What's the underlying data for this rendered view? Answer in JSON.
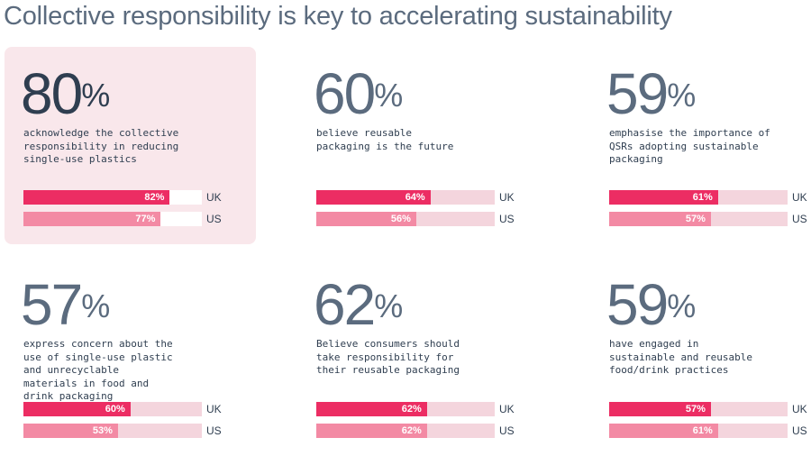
{
  "title": "Collective responsibility is key to accelerating sustainability",
  "colors": {
    "uk": "#ec2d63",
    "us": "#f38aa4",
    "track": "#f4d5dd",
    "highlight_bg": "#f9e7eb"
  },
  "stats": [
    {
      "value": "80",
      "unit": "%",
      "text": "acknowledge the collective responsibility in reducing single-use plastics",
      "uk": 82,
      "us": 77,
      "uk_label": "82%",
      "us_label": "77%",
      "highlighted": true
    },
    {
      "value": "60",
      "unit": "%",
      "text": "believe reusable packaging is the future",
      "uk": 64,
      "us": 56,
      "uk_label": "64%",
      "us_label": "56%"
    },
    {
      "value": "59",
      "unit": "%",
      "text": "emphasise the importance of QSRs adopting sustainable packaging",
      "uk": 61,
      "us": 57,
      "uk_label": "61%",
      "us_label": "57%"
    },
    {
      "value": "57",
      "unit": "%",
      "text": "express concern about the use of single-use plastic and unrecyclable materials in food and drink packaging",
      "uk": 60,
      "us": 53,
      "uk_label": "60%",
      "us_label": "53%"
    },
    {
      "value": "62",
      "unit": "%",
      "text": "Believe consumers should take responsibility for their reusable packaging",
      "uk": 62,
      "us": 62,
      "uk_label": "62%",
      "us_label": "62%"
    },
    {
      "value": "59",
      "unit": "%",
      "text": "have engaged in sustainable and reusable food/drink practices",
      "uk": 57,
      "us": 61,
      "uk_label": "57%",
      "us_label": "61%"
    }
  ],
  "legend": {
    "uk": "UK",
    "us": "US"
  }
}
